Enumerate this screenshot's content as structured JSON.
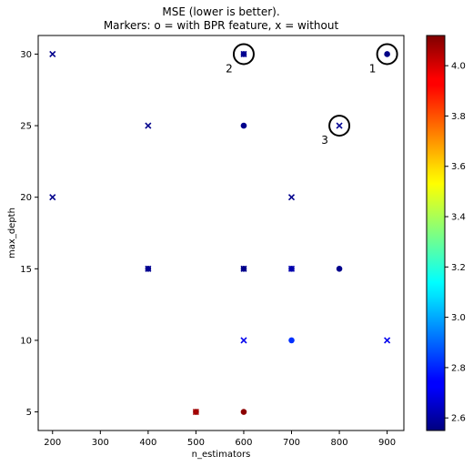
{
  "chart_data": {
    "type": "scatter",
    "title": "MSE (lower is better).",
    "subtitle": "Markers: o = with BPR feature, x = without",
    "xlabel": "n_estimators",
    "ylabel": "max_depth",
    "xlim": [
      170,
      935
    ],
    "ylim": [
      3.7,
      31.3
    ],
    "xticks": [
      200,
      300,
      400,
      500,
      600,
      700,
      800,
      900
    ],
    "yticks": [
      5,
      10,
      15,
      20,
      25,
      30
    ],
    "grid": false,
    "colormap": "jet",
    "color_range": [
      2.55,
      4.12
    ],
    "colorbar_ticks": [
      2.6,
      2.8,
      3.0,
      3.2,
      3.4,
      3.6,
      3.8,
      4.0
    ],
    "series": [
      {
        "marker": "o",
        "points": [
          {
            "x": 400,
            "y": 15,
            "mse": 2.57
          },
          {
            "x": 500,
            "y": 5,
            "mse": 4.1
          },
          {
            "x": 600,
            "y": 5,
            "mse": 4.1
          },
          {
            "x": 600,
            "y": 15,
            "mse": 2.57
          },
          {
            "x": 600,
            "y": 25,
            "mse": 2.57
          },
          {
            "x": 600,
            "y": 30,
            "mse": 2.57
          },
          {
            "x": 700,
            "y": 10,
            "mse": 2.82
          },
          {
            "x": 700,
            "y": 15,
            "mse": 2.62
          },
          {
            "x": 800,
            "y": 15,
            "mse": 2.57
          },
          {
            "x": 900,
            "y": 30,
            "mse": 2.56
          }
        ]
      },
      {
        "marker": "x",
        "points": [
          {
            "x": 200,
            "y": 20,
            "mse": 2.57
          },
          {
            "x": 200,
            "y": 30,
            "mse": 2.57
          },
          {
            "x": 400,
            "y": 15,
            "mse": 2.58
          },
          {
            "x": 400,
            "y": 25,
            "mse": 2.57
          },
          {
            "x": 500,
            "y": 5,
            "mse": 4.05
          },
          {
            "x": 600,
            "y": 10,
            "mse": 2.72
          },
          {
            "x": 600,
            "y": 15,
            "mse": 2.57
          },
          {
            "x": 600,
            "y": 30,
            "mse": 2.58
          },
          {
            "x": 700,
            "y": 15,
            "mse": 2.62
          },
          {
            "x": 700,
            "y": 20,
            "mse": 2.57
          },
          {
            "x": 800,
            "y": 25,
            "mse": 2.58
          },
          {
            "x": 900,
            "y": 10,
            "mse": 2.72
          }
        ]
      }
    ],
    "annotations": [
      {
        "label": "1",
        "x": 900,
        "y": 30
      },
      {
        "label": "2",
        "x": 600,
        "y": 30
      },
      {
        "label": "3",
        "x": 800,
        "y": 25
      }
    ]
  }
}
